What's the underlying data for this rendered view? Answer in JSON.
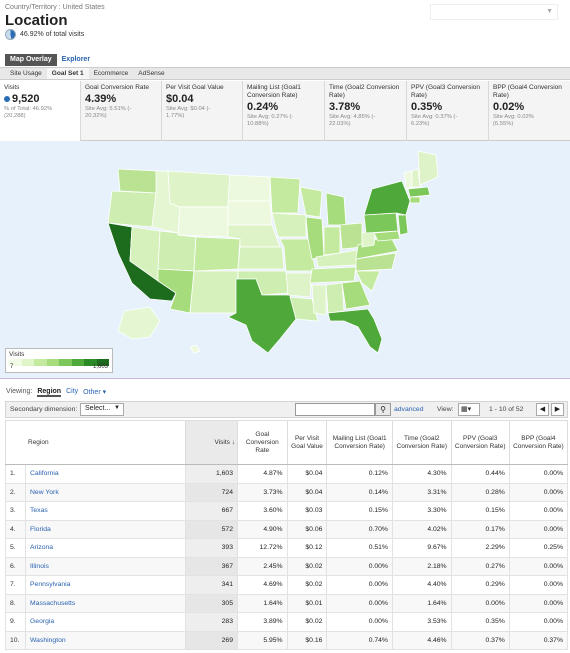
{
  "header": {
    "breadcrumb": "Country/Territory : United States",
    "title": "Location",
    "pct_of_total": "46.92% of total visits"
  },
  "view_tabs": {
    "map_overlay": "Map Overlay",
    "explorer": "Explorer"
  },
  "sub_tabs": [
    "Site Usage",
    "Goal Set 1",
    "Ecommerce",
    "AdSense"
  ],
  "metrics": [
    {
      "label": "Visits",
      "value": "9,520",
      "sub1": "% of Total: 46.92%",
      "sub2": "(20,288)",
      "delta": ""
    },
    {
      "label": "Goal Conversion Rate",
      "value": "4.39%",
      "sub1": "Site Avg: 5.51% (-",
      "sub2": "",
      "delta": "20.32%)"
    },
    {
      "label": "Per Visit Goal Value",
      "value": "$0.04",
      "sub1": "Site Avg: $0.04 (-",
      "sub2": "",
      "delta": "1.77%)"
    },
    {
      "label": "Mailing List (Goal1 Conversion Rate)",
      "value": "0.24%",
      "sub1": "Site Avg: 0.27% (-",
      "sub2": "",
      "delta": "10.88%)"
    },
    {
      "label": "Time (Goal2 Conversion Rate)",
      "value": "3.78%",
      "sub1": "Site Avg: 4.85% (-",
      "sub2": "",
      "delta": "22.03%)"
    },
    {
      "label": "PPV (Goal3 Conversion Rate)",
      "value": "0.35%",
      "sub1": "Site Avg: 0.37% (-",
      "sub2": "",
      "delta": "6.23%)"
    },
    {
      "label": "BPP (Goal4 Conversion Rate)",
      "value": "0.02%",
      "sub1": "Site Avg: 0.02%",
      "sub2": "",
      "delta": "(6.55%)"
    }
  ],
  "legend": {
    "title": "Visits",
    "min": "7",
    "max": "1,603",
    "colors": [
      "#f2fbe6",
      "#dff5c8",
      "#c4eaa0",
      "#a6dc7c",
      "#7cc75a",
      "#4ea83a",
      "#2a8a26",
      "#1d6b1c"
    ]
  },
  "viewing": {
    "label": "Viewing:",
    "region": "Region",
    "city": "City",
    "other": "Other ▾"
  },
  "controls": {
    "secondary_label": "Secondary dimension:",
    "secondary_value": "Select...",
    "advanced": "advanced",
    "view_label": "View:",
    "range": "1 - 10 of 52"
  },
  "table": {
    "headers": [
      "Region",
      "Visits",
      "Goal Conversion Rate",
      "Per Visit Goal Value",
      "Mailing List (Goal1 Conversion Rate)",
      "Time (Goal2 Conversion Rate)",
      "PPV (Goal3 Conversion Rate)",
      "BPP (Goal4 Conversion Rate)"
    ],
    "rows": [
      [
        "1.",
        "California",
        "1,603",
        "4.87%",
        "$0.04",
        "0.12%",
        "4.30%",
        "0.44%",
        "0.00%"
      ],
      [
        "2.",
        "New York",
        "724",
        "3.73%",
        "$0.04",
        "0.14%",
        "3.31%",
        "0.28%",
        "0.00%"
      ],
      [
        "3.",
        "Texas",
        "667",
        "3.60%",
        "$0.03",
        "0.15%",
        "3.30%",
        "0.15%",
        "0.00%"
      ],
      [
        "4.",
        "Florida",
        "572",
        "4.90%",
        "$0.06",
        "0.70%",
        "4.02%",
        "0.17%",
        "0.00%"
      ],
      [
        "5.",
        "Arizona",
        "393",
        "12.72%",
        "$0.12",
        "0.51%",
        "9.67%",
        "2.29%",
        "0.25%"
      ],
      [
        "6.",
        "Illinois",
        "367",
        "2.45%",
        "$0.02",
        "0.00%",
        "2.18%",
        "0.27%",
        "0.00%"
      ],
      [
        "7.",
        "Pennsylvania",
        "341",
        "4.69%",
        "$0.02",
        "0.00%",
        "4.40%",
        "0.29%",
        "0.00%"
      ],
      [
        "8.",
        "Massachusetts",
        "305",
        "1.64%",
        "$0.01",
        "0.00%",
        "1.64%",
        "0.00%",
        "0.00%"
      ],
      [
        "9.",
        "Georgia",
        "283",
        "3.89%",
        "$0.02",
        "0.00%",
        "3.53%",
        "0.35%",
        "0.00%"
      ],
      [
        "10.",
        "Washington",
        "269",
        "5.95%",
        "$0.16",
        "0.74%",
        "4.46%",
        "0.37%",
        "0.37%"
      ]
    ]
  }
}
